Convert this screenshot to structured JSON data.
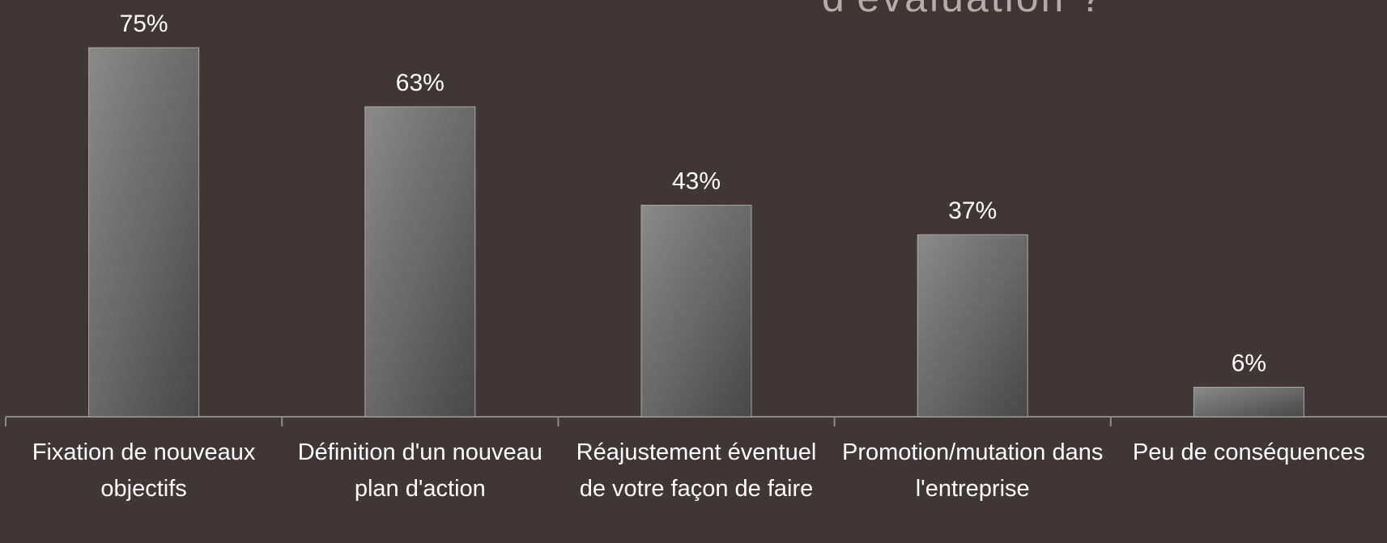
{
  "chart_data": {
    "type": "bar",
    "title": "d'évaluation ?",
    "categories": [
      "Fixation de nouveaux objectifs",
      "Définition d'un nouveau plan d'action",
      "Réajustement éventuel de votre façon de faire",
      "Promotion/mutation dans l'entreprise",
      "Peu de conséquences"
    ],
    "values": [
      75,
      63,
      43,
      37,
      6
    ],
    "value_labels": [
      "75%",
      "63%",
      "43%",
      "37%",
      "6%"
    ],
    "color": "#8a8a8a",
    "ylim": [
      0,
      80
    ],
    "grid": false
  }
}
